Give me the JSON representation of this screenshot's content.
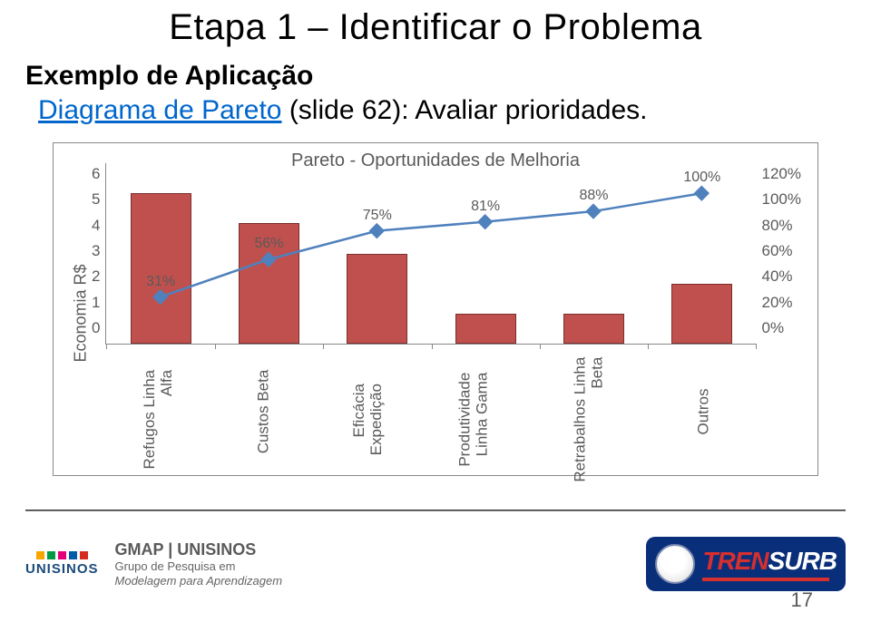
{
  "title": "Etapa 1 – Identificar o Problema",
  "subheading": "Exemplo de Aplicação",
  "link_text": "Diagrama de Pareto",
  "link_suffix": " (slide 62): Avaliar prioridades.",
  "page_number": "17",
  "chart": {
    "type": "pareto",
    "title": "Pareto - Oportunidades de Melhoria",
    "y_left_label": "Economia R$",
    "y_left_ticks": [
      "6",
      "5",
      "4",
      "3",
      "2",
      "1",
      "0"
    ],
    "y_left_min": 0,
    "y_left_max": 6,
    "y_right_ticks": [
      "120%",
      "100%",
      "80%",
      "60%",
      "40%",
      "20%",
      "0%"
    ],
    "y_right_min": 0,
    "y_right_max": 120,
    "categories": [
      "Refugos Linha Alfa",
      "Custos Beta",
      "Eficácia Expedição",
      "Produtividade Linha Gama",
      "Retrabalhos Linha Beta",
      "Outros"
    ],
    "cat_lines": [
      [
        "Refugos Linha",
        "Alfa"
      ],
      [
        "Custos Beta"
      ],
      [
        "Eficácia",
        "Expedição"
      ],
      [
        "Produtividade",
        "Linha Gama"
      ],
      [
        "Retrabalhos Linha",
        "Beta"
      ],
      [
        "Outros"
      ]
    ],
    "bar_values": [
      5,
      4,
      3,
      1,
      1,
      2
    ],
    "bar_color": "#c0504d",
    "bar_border": "#7a2f2d",
    "line_pct": [
      31,
      56,
      75,
      81,
      88,
      100
    ],
    "line_color": "#4f81bd",
    "marker_color": "#4f81bd",
    "marker_size": 8,
    "axis_color": "#888888",
    "text_color": "#5a5a5a",
    "label_fontsize": 17
  },
  "footer": {
    "gmap_title": "GMAP | UNISINOS",
    "gmap_sub1": "Grupo de Pesquisa em",
    "gmap_sub2": "Modelagem para Aprendizagem",
    "uni_name": "UNISINOS",
    "uni_dot_colors": [
      "#f7a600",
      "#009a44",
      "#e3007a",
      "#005baa",
      "#d52b1e"
    ],
    "trensurb": {
      "pre": "TREN",
      "post": "SURB",
      "brand_bg": "#0a2f7a",
      "accent": "#d62f2f"
    }
  }
}
